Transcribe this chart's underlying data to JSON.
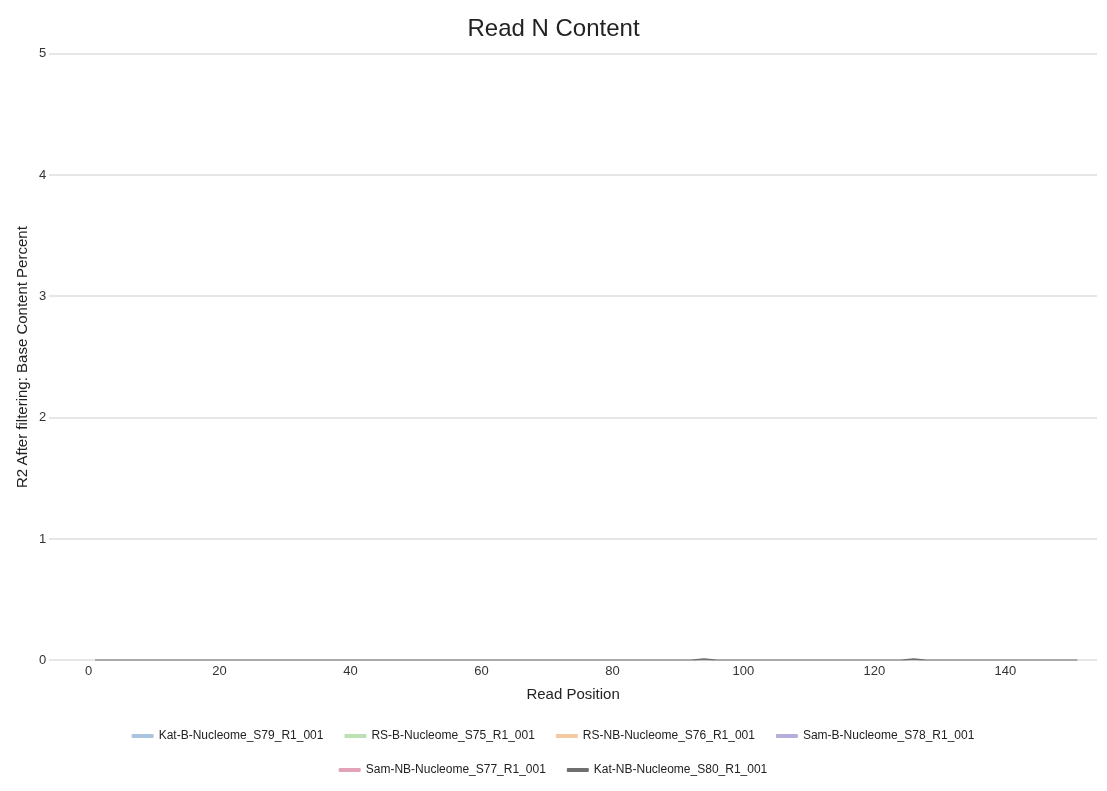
{
  "chart_data": {
    "type": "line",
    "title": "Read N Content",
    "xlabel": "Read Position",
    "ylabel": "R2 After filtering: Base Content Percent",
    "xlim": [
      -6,
      154
    ],
    "xticks": [
      0,
      20,
      40,
      60,
      80,
      100,
      120,
      140
    ],
    "ylim": [
      0,
      5
    ],
    "yticks": [
      0,
      1,
      2,
      3,
      4,
      5
    ],
    "grid": "y",
    "legend": "bottom",
    "marker": "none",
    "line_style": "solid",
    "series": [
      {
        "name": "Kat-B-Nucleome_S79_R1_001",
        "color": "#a9c4de"
      },
      {
        "name": "RS-B-Nucleome_S75_R1_001",
        "color": "#bde0b5"
      },
      {
        "name": "RS-NB-Nucleome_S76_R1_001",
        "color": "#f2c9a0"
      },
      {
        "name": "Sam-B-Nucleome_S78_R1_001",
        "color": "#b4aedb"
      },
      {
        "name": "Sam-NB-Nucleome_S77_R1_001",
        "color": "#e3a3b6"
      },
      {
        "name": "Kat-NB-Nucleome_S80_R1_001",
        "color": "#6f6f6f",
        "x": [
          1,
          92,
          94,
          96,
          124,
          126,
          128,
          151
        ],
        "values": [
          0,
          0,
          0.01,
          0,
          0,
          0.01,
          0,
          0
        ]
      }
    ]
  }
}
